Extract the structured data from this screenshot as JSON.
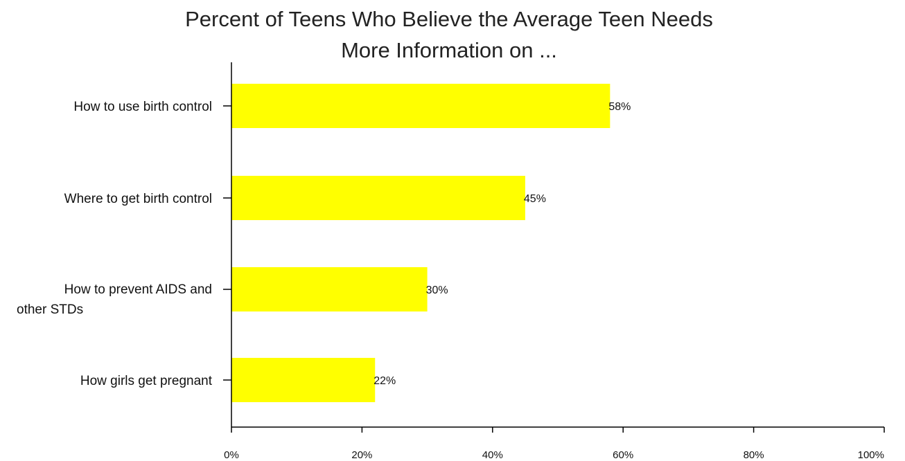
{
  "chart_data": {
    "type": "bar",
    "orientation": "horizontal",
    "title_lines": [
      "Percent of Teens Who Believe the Average Teen Needs",
      "More Information on ..."
    ],
    "categories": [
      [
        "How to use birth control"
      ],
      [
        "Where to get birth control"
      ],
      [
        "How to prevent AIDS and",
        "other STDs"
      ],
      [
        "How girls get pregnant"
      ]
    ],
    "values": [
      58,
      45,
      30,
      22
    ],
    "data_labels": [
      "58%",
      "45%",
      "30%",
      "22%"
    ],
    "xlim": [
      0,
      100
    ],
    "xticks": [
      0,
      20,
      40,
      60,
      80,
      100
    ],
    "xtick_labels": [
      "0%",
      "20%",
      "40%",
      "60%",
      "80%",
      "100%"
    ],
    "xlabel": "",
    "ylabel": "",
    "grid": false,
    "bar_color": "#FFFF00",
    "axis_color": "#000000"
  }
}
